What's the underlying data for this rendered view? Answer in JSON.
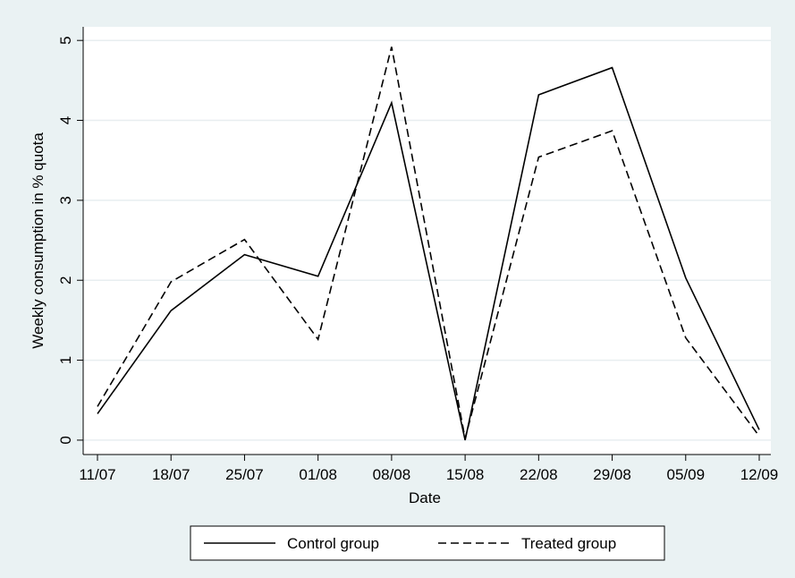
{
  "chart_data": {
    "type": "line",
    "x_label": "Date",
    "y_label": "Weekly consumption in % quota",
    "categories": [
      "11/07",
      "18/07",
      "25/07",
      "01/08",
      "08/08",
      "15/08",
      "22/08",
      "29/08",
      "05/09",
      "12/09"
    ],
    "series": [
      {
        "name": "Control group",
        "color": "#000000",
        "line_style": "solid",
        "values": [
          0.33,
          1.62,
          2.32,
          2.05,
          4.22,
          0,
          4.32,
          4.66,
          2.03,
          0.13
        ]
      },
      {
        "name": "Treated group",
        "color": "#000000",
        "line_style": "dashed",
        "values": [
          0.42,
          1.98,
          2.51,
          1.26,
          4.92,
          0.02,
          3.54,
          3.87,
          1.28,
          0.05
        ]
      }
    ],
    "ylim": [
      -0.18,
      5.17
    ],
    "yticks": [
      0,
      1,
      2,
      3,
      4,
      5
    ],
    "grid": true,
    "legend": "bottom"
  }
}
